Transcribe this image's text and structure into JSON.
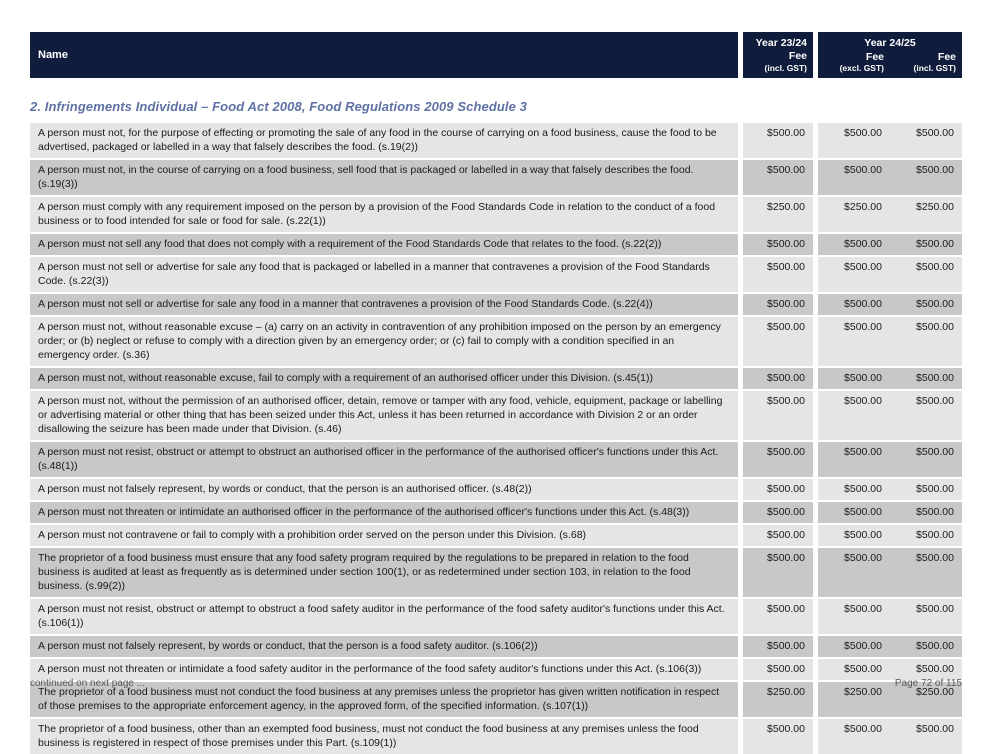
{
  "header": {
    "name_label": "Name",
    "year2324": {
      "title": "Year 23/24",
      "fee_label": "Fee",
      "gst_label": "(incl. GST)"
    },
    "year2425": {
      "title": "Year 24/25",
      "excl": {
        "fee_label": "Fee",
        "gst_label": "(excl. GST)"
      },
      "incl": {
        "fee_label": "Fee",
        "gst_label": "(incl. GST)"
      }
    }
  },
  "section_title": "2. Infringements Individual – Food Act 2008, Food Regulations 2009 Schedule 3",
  "table": {
    "rows": [
      {
        "name": "A person must not, for the purpose of effecting or promoting the sale of any food in the course of carrying on a food business, cause the food to be advertised, packaged or labelled in a way that falsely describes the food. (s.19(2))",
        "fee_2324_incl": "$500.00",
        "fee_2425_excl": "$500.00",
        "fee_2425_incl": "$500.00"
      },
      {
        "name": "A person must not, in the course of carrying on a food business, sell food that is packaged or labelled in a way that falsely describes the food. (s.19(3))",
        "fee_2324_incl": "$500.00",
        "fee_2425_excl": "$500.00",
        "fee_2425_incl": "$500.00"
      },
      {
        "name": "A person must comply with any requirement imposed on the person by a provision of the Food Standards Code in relation to the conduct of a food business or to food intended for sale or food for sale. (s.22(1))",
        "fee_2324_incl": "$250.00",
        "fee_2425_excl": "$250.00",
        "fee_2425_incl": "$250.00"
      },
      {
        "name": "A person must not sell any food that does not comply with a requirement of the Food Standards Code that relates to the food. (s.22(2))",
        "fee_2324_incl": "$500.00",
        "fee_2425_excl": "$500.00",
        "fee_2425_incl": "$500.00"
      },
      {
        "name": "A person must not sell or advertise for sale any food that is packaged or labelled in a manner that contravenes a provision of the Food Standards Code. (s.22(3))",
        "fee_2324_incl": "$500.00",
        "fee_2425_excl": "$500.00",
        "fee_2425_incl": "$500.00"
      },
      {
        "name": "A person must not sell or advertise for sale any food in a manner that contravenes a provision of the Food Standards Code. (s.22(4))",
        "fee_2324_incl": "$500.00",
        "fee_2425_excl": "$500.00",
        "fee_2425_incl": "$500.00"
      },
      {
        "name": "A person must not, without reasonable excuse – (a) carry on an activity in contravention of any prohibition imposed on the person by an emergency order; or (b) neglect or refuse to comply with a direction given by an emergency order; or (c) fail to comply with a condition specified in an emergency order. (s.36)",
        "fee_2324_incl": "$500.00",
        "fee_2425_excl": "$500.00",
        "fee_2425_incl": "$500.00"
      },
      {
        "name": "A person must not, without reasonable excuse, fail to comply with a requirement of an authorised officer under this Division. (s.45(1))",
        "fee_2324_incl": "$500.00",
        "fee_2425_excl": "$500.00",
        "fee_2425_incl": "$500.00"
      },
      {
        "name": "A person must not, without the permission of an authorised officer, detain, remove or tamper with any food, vehicle, equipment, package or labelling or advertising material or other thing that has been seized under this Act, unless it has been returned in accordance with Division 2 or an order disallowing the seizure has been made under that Division. (s.46)",
        "fee_2324_incl": "$500.00",
        "fee_2425_excl": "$500.00",
        "fee_2425_incl": "$500.00"
      },
      {
        "name": "A person must not resist, obstruct or attempt to obstruct an authorised officer in the performance of the authorised officer's functions under this Act. (s.48(1))",
        "fee_2324_incl": "$500.00",
        "fee_2425_excl": "$500.00",
        "fee_2425_incl": "$500.00"
      },
      {
        "name": "A person must not falsely represent, by words or conduct, that the person is an authorised officer. (s.48(2))",
        "fee_2324_incl": "$500.00",
        "fee_2425_excl": "$500.00",
        "fee_2425_incl": "$500.00"
      },
      {
        "name": "A person must not threaten or intimidate an authorised officer in the performance of the authorised officer's functions under this Act. (s.48(3))",
        "fee_2324_incl": "$500.00",
        "fee_2425_excl": "$500.00",
        "fee_2425_incl": "$500.00"
      },
      {
        "name": "A person must not contravene or fail to comply with a prohibition order served on the person under this Division. (s.68)",
        "fee_2324_incl": "$500.00",
        "fee_2425_excl": "$500.00",
        "fee_2425_incl": "$500.00"
      },
      {
        "name": "The proprietor of a food business must ensure that any food safety program required by the regulations to be prepared in relation to the food business is audited at least as frequently as is determined under section 100(1), or as redetermined under section 103, in relation to the food business. (s.99(2))",
        "fee_2324_incl": "$500.00",
        "fee_2425_excl": "$500.00",
        "fee_2425_incl": "$500.00"
      },
      {
        "name": "A person must not resist, obstruct or attempt to obstruct a food safety auditor in the performance of the food safety auditor's functions under this Act. (s.106(1))",
        "fee_2324_incl": "$500.00",
        "fee_2425_excl": "$500.00",
        "fee_2425_incl": "$500.00"
      },
      {
        "name": "A person must not falsely represent, by words or conduct, that the person is a food safety auditor. (s.106(2))",
        "fee_2324_incl": "$500.00",
        "fee_2425_excl": "$500.00",
        "fee_2425_incl": "$500.00"
      },
      {
        "name": "A person must not threaten or intimidate a food safety auditor in the performance of the food safety auditor's functions under this Act. (s.106(3))",
        "fee_2324_incl": "$500.00",
        "fee_2425_excl": "$500.00",
        "fee_2425_incl": "$500.00"
      },
      {
        "name": "The proprietor of a food business must not conduct the food business at any premises unless the proprietor has given written notification in respect of those premises to the appropriate enforcement agency, in the approved form, of the specified information. (s.107(1))",
        "fee_2324_incl": "$250.00",
        "fee_2425_excl": "$250.00",
        "fee_2425_incl": "$250.00"
      },
      {
        "name": "The proprietor of a food business, other than an exempted food business, must not conduct the food business at any premises unless the food business is registered in respect of those premises under this Part. (s.109(1))",
        "fee_2324_incl": "$500.00",
        "fee_2425_excl": "$500.00",
        "fee_2425_incl": "$500.00"
      }
    ]
  },
  "footer": {
    "left": "continued on next page ...",
    "right": "Page 72 of 115"
  },
  "colors": {
    "header_bg": "#101c3c",
    "heading_text": "#5e71a4",
    "row_light": "#e5e5e5",
    "row_dark": "#c8c8c8"
  }
}
